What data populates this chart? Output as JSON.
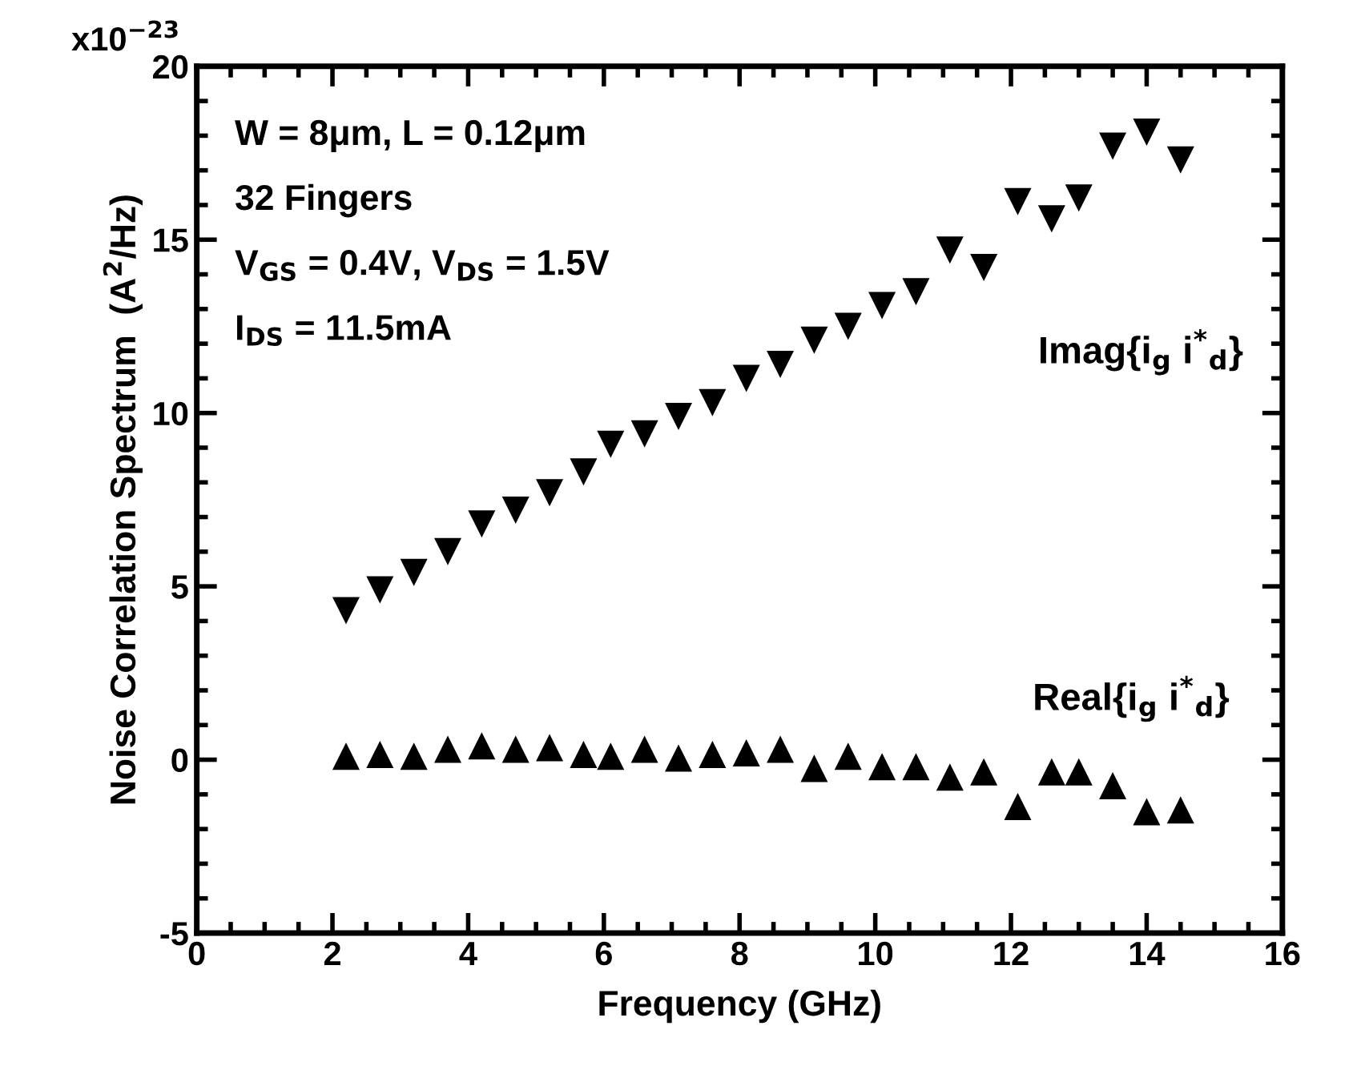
{
  "chart_data": {
    "type": "scatter",
    "xlabel": "Frequency (GHz)",
    "ylabel": "Noise Correlation Spectrum  (A$^{2}$/Hz)",
    "annotations": [
      "x10$^{−23}$",
      "W = 8μm, L = 0.12μm",
      "32 Fingers",
      "V$_{GS}$ = 0.4V, V$_{DS}$ = 1.5V",
      "I$_{DS}$ = 11.5mA",
      "Imag{i$_{g}$ i$^{*}$$_{d}$}",
      "Real{i$_{g}$ i$^{*}$$_{d}$}"
    ],
    "x": [
      2.2,
      2.7,
      3.2,
      3.7,
      4.2,
      4.7,
      5.2,
      5.7,
      6.1,
      6.6,
      7.1,
      7.6,
      8.1,
      8.6,
      9.1,
      9.6,
      10.1,
      10.6,
      11.1,
      11.6,
      12.1,
      12.6,
      13.0,
      13.5,
      14.0,
      14.5
    ],
    "series": [
      {
        "color": "#000000",
        "marker": "triangle_down",
        "values": [
          4.3,
          4.9,
          5.4,
          6.0,
          6.8,
          7.2,
          7.7,
          8.3,
          9.1,
          9.4,
          9.9,
          10.3,
          11.0,
          11.4,
          12.1,
          12.5,
          13.1,
          13.5,
          14.7,
          14.2,
          16.1,
          15.6,
          16.2,
          17.7,
          18.1,
          17.3
        ]
      },
      {
        "color": "#000000",
        "marker": "triangle",
        "values": [
          0.1,
          0.15,
          0.1,
          0.3,
          0.4,
          0.3,
          0.35,
          0.15,
          0.1,
          0.3,
          0.05,
          0.15,
          0.2,
          0.3,
          -0.25,
          0.1,
          -0.2,
          -0.2,
          -0.5,
          -0.35,
          -1.35,
          -0.35,
          -0.35,
          -0.75,
          -1.5,
          -1.45
        ]
      }
    ],
    "xlim": [
      0,
      16
    ],
    "xticks": [
      0,
      2,
      4,
      6,
      8,
      10,
      12,
      14,
      16
    ],
    "ylim": [
      -5,
      20
    ],
    "yticks": [
      -5,
      0,
      5,
      10,
      15,
      20
    ],
    "grid": false,
    "legend": false
  }
}
